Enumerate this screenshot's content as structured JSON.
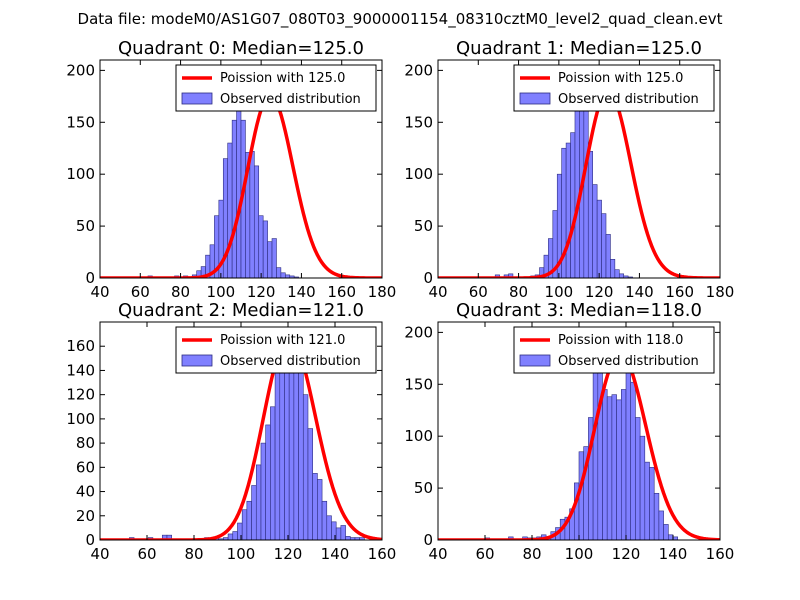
{
  "suptitle": "Data file: modeM0/AS1G07_080T03_9000001154_08310cztM0_level2_quad_clean.evt",
  "colors": {
    "bar_fill": "#8080ff",
    "bar_edge": "#2c2c80",
    "curve": "#ff0000",
    "axis": "#000000"
  },
  "chart_data": [
    {
      "type": "bar",
      "title": "Quadrant 0: Median=125.0",
      "xlim": [
        40,
        180
      ],
      "ylim": [
        0,
        210
      ],
      "xticks": [
        40,
        60,
        80,
        100,
        120,
        140,
        160,
        180
      ],
      "yticks": [
        0,
        50,
        100,
        150,
        200
      ],
      "legend_position": "top-right",
      "legend": [
        "Poission with 125.0",
        "Observed distribution"
      ],
      "bins": {
        "start": 55,
        "width": 2.2,
        "values": [
          1,
          0,
          0,
          1,
          2,
          0,
          0,
          0,
          1,
          1,
          2,
          0,
          2,
          0,
          3,
          7,
          11,
          22,
          32,
          60,
          75,
          115,
          130,
          152,
          180,
          152,
          121,
          122,
          108,
          60,
          55,
          35,
          38,
          10,
          5,
          3,
          2,
          1,
          0
        ]
      },
      "poisson_mu": 125,
      "poisson_scale": 4935
    },
    {
      "type": "bar",
      "title": "Quadrant 1: Median=125.0",
      "xlim": [
        40,
        180
      ],
      "ylim": [
        0,
        210
      ],
      "xticks": [
        40,
        60,
        80,
        100,
        120,
        140,
        160,
        180
      ],
      "yticks": [
        0,
        50,
        100,
        150,
        200
      ],
      "legend_position": "top-right",
      "legend": [
        "Poission with 125.0",
        "Observed distribution"
      ],
      "bins": {
        "start": 53,
        "width": 2.2,
        "values": [
          0,
          0,
          0,
          1,
          0,
          0,
          0,
          3,
          0,
          3,
          4,
          0,
          0,
          1,
          0,
          2,
          3,
          10,
          22,
          38,
          65,
          100,
          125,
          130,
          140,
          165,
          190,
          185,
          122,
          90,
          75,
          62,
          42,
          18,
          8,
          4,
          2,
          1,
          0,
          0
        ]
      },
      "poisson_mu": 125,
      "poisson_scale": 5050
    },
    {
      "type": "bar",
      "title": "Quadrant 2: Median=121.0",
      "xlim": [
        40,
        160
      ],
      "ylim": [
        0,
        180
      ],
      "xticks": [
        40,
        60,
        80,
        100,
        120,
        140,
        160
      ],
      "yticks": [
        0,
        20,
        40,
        60,
        80,
        100,
        120,
        140,
        160
      ],
      "legend_position": "top-right",
      "legend": [
        "Poission with 121.0",
        "Observed distribution"
      ],
      "bins": {
        "start": 52.5,
        "width": 2.0,
        "values": [
          2,
          1,
          0,
          1,
          2,
          0,
          0,
          4,
          4,
          1,
          1,
          0,
          1,
          0,
          0,
          0,
          2,
          0,
          2,
          1,
          2,
          5,
          7,
          14,
          25,
          32,
          45,
          62,
          80,
          95,
          110,
          140,
          175,
          140,
          165,
          170,
          155,
          120,
          92,
          55,
          50,
          32,
          20,
          15,
          10,
          12,
          3,
          2,
          2,
          2
        ]
      },
      "poisson_mu": 121,
      "poisson_scale": 4640
    },
    {
      "type": "bar",
      "title": "Quadrant 3: Median=118.0",
      "xlim": [
        40,
        160
      ],
      "ylim": [
        0,
        210
      ],
      "xticks": [
        40,
        60,
        80,
        100,
        120,
        140,
        160
      ],
      "yticks": [
        0,
        50,
        100,
        150,
        200
      ],
      "legend_position": "top-right",
      "legend": [
        "Poission with 118.0",
        "Observed distribution"
      ],
      "bins": {
        "start": 56,
        "width": 2.0,
        "values": [
          0,
          0,
          2,
          0,
          0,
          1,
          1,
          3,
          0,
          0,
          3,
          2,
          2,
          3,
          5,
          3,
          8,
          12,
          20,
          22,
          30,
          55,
          85,
          90,
          118,
          185,
          165,
          145,
          138,
          140,
          135,
          145,
          185,
          152,
          118,
          100,
          75,
          70,
          45,
          28,
          15,
          5,
          3
        ]
      },
      "poisson_mu": 118,
      "poisson_scale": 4890
    }
  ]
}
